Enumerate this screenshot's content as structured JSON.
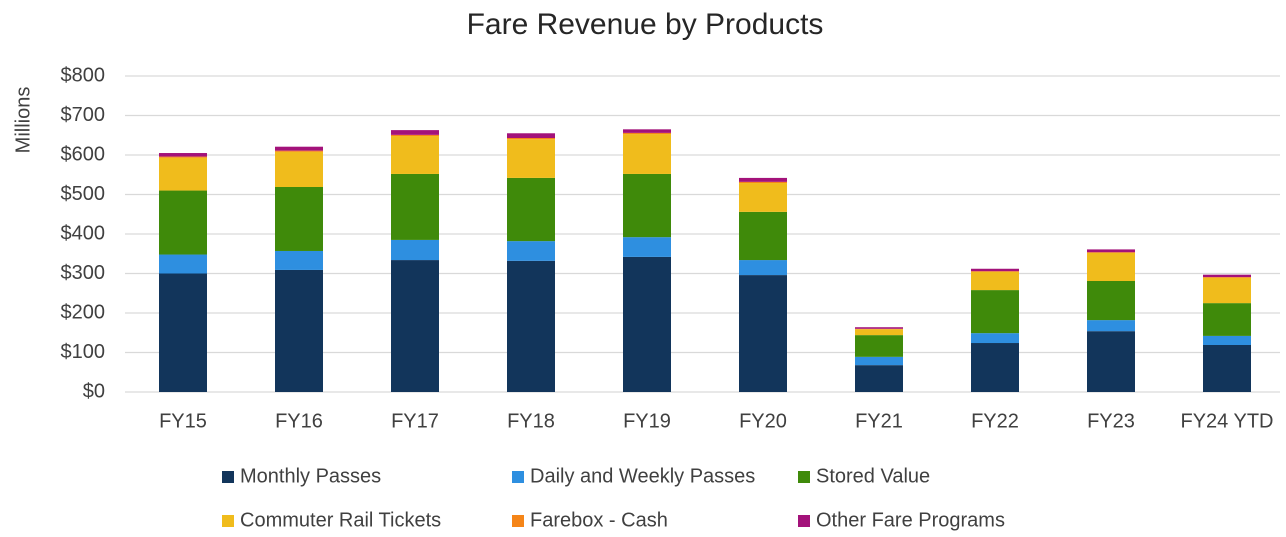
{
  "chart_data": {
    "type": "stacked_bar",
    "title": "Fare Revenue by Products",
    "y_label": "Millions",
    "categories": [
      "FY15",
      "FY16",
      "FY17",
      "FY18",
      "FY19",
      "FY20",
      "FY21",
      "FY22",
      "FY23",
      "FY24 YTD"
    ],
    "series": [
      {
        "name": "Monthly Passes",
        "color": "#12355b",
        "values": [
          300,
          309,
          334,
          332,
          342,
          296,
          68,
          124,
          154,
          119
        ]
      },
      {
        "name": "Daily and Weekly Passes",
        "color": "#2e8fe0",
        "values": [
          48,
          48,
          51,
          50,
          50,
          38,
          21,
          25,
          28,
          23
        ]
      },
      {
        "name": "Stored Value",
        "color": "#3f8a0a",
        "values": [
          162,
          162,
          167,
          160,
          160,
          122,
          55,
          109,
          99,
          83
        ]
      },
      {
        "name": "Commuter Rail Tickets",
        "color": "#f0bc1c",
        "values": [
          83,
          89,
          96,
          98,
          101,
          73,
          15,
          46,
          71,
          64
        ]
      },
      {
        "name": "Farebox - Cash",
        "color": "#f58518",
        "values": [
          3,
          3,
          3,
          3,
          3,
          3,
          1,
          2,
          2,
          2
        ]
      },
      {
        "name": "Other Fare Programs",
        "color": "#a3127a",
        "values": [
          9,
          10,
          12,
          12,
          9,
          10,
          4,
          6,
          7,
          6
        ]
      }
    ],
    "ylim": [
      0,
      800
    ],
    "yticks": [
      {
        "value": 0,
        "label": "$0"
      },
      {
        "value": 100,
        "label": "$100"
      },
      {
        "value": 200,
        "label": "$200"
      },
      {
        "value": 300,
        "label": "$300"
      },
      {
        "value": 400,
        "label": "$400"
      },
      {
        "value": 500,
        "label": "$500"
      },
      {
        "value": 600,
        "label": "$600"
      },
      {
        "value": 700,
        "label": "$700"
      },
      {
        "value": 800,
        "label": "$800"
      }
    ],
    "grid": true
  }
}
